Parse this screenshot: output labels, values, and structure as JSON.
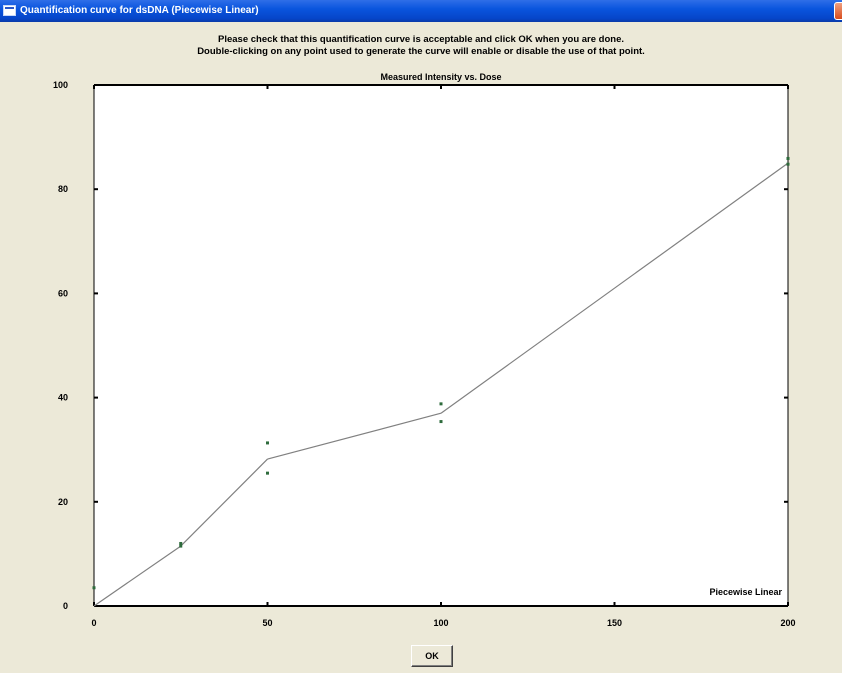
{
  "window": {
    "title": "Quantification curve for dsDNA (Piecewise Linear)"
  },
  "instructions": {
    "line1": "Please check that this quantification curve is acceptable and click OK when you are done.",
    "line2": "Double-clicking on any point used to generate the curve will enable or disable the use of that point."
  },
  "chart_data": {
    "type": "line",
    "title": "Measured Intensity vs. Dose",
    "annotation": "Piecewise Linear",
    "xlabel": "",
    "ylabel": "",
    "xlim": [
      0,
      200
    ],
    "ylim": [
      0,
      100
    ],
    "x_ticks": [
      0,
      50,
      100,
      150,
      200
    ],
    "y_ticks": [
      0,
      20,
      40,
      60,
      80,
      100
    ],
    "grid": false,
    "curve": [
      {
        "x": 0,
        "y": 0
      },
      {
        "x": 25,
        "y": 11.5
      },
      {
        "x": 50,
        "y": 28.2
      },
      {
        "x": 100,
        "y": 37
      },
      {
        "x": 200,
        "y": 85
      }
    ],
    "points": [
      {
        "x": 0,
        "y": 3.5
      },
      {
        "x": 25,
        "y": 11.5
      },
      {
        "x": 25,
        "y": 12
      },
      {
        "x": 50,
        "y": 31.3
      },
      {
        "x": 50,
        "y": 25.5
      },
      {
        "x": 100,
        "y": 38.8
      },
      {
        "x": 100,
        "y": 35.4
      },
      {
        "x": 200,
        "y": 85.9
      },
      {
        "x": 200,
        "y": 84.8
      }
    ],
    "colors": {
      "curve": "#808080",
      "points": "#2e6b3c",
      "plot_background": "#ffffff",
      "axis": "#000000"
    }
  },
  "buttons": {
    "ok_label": "OK"
  }
}
